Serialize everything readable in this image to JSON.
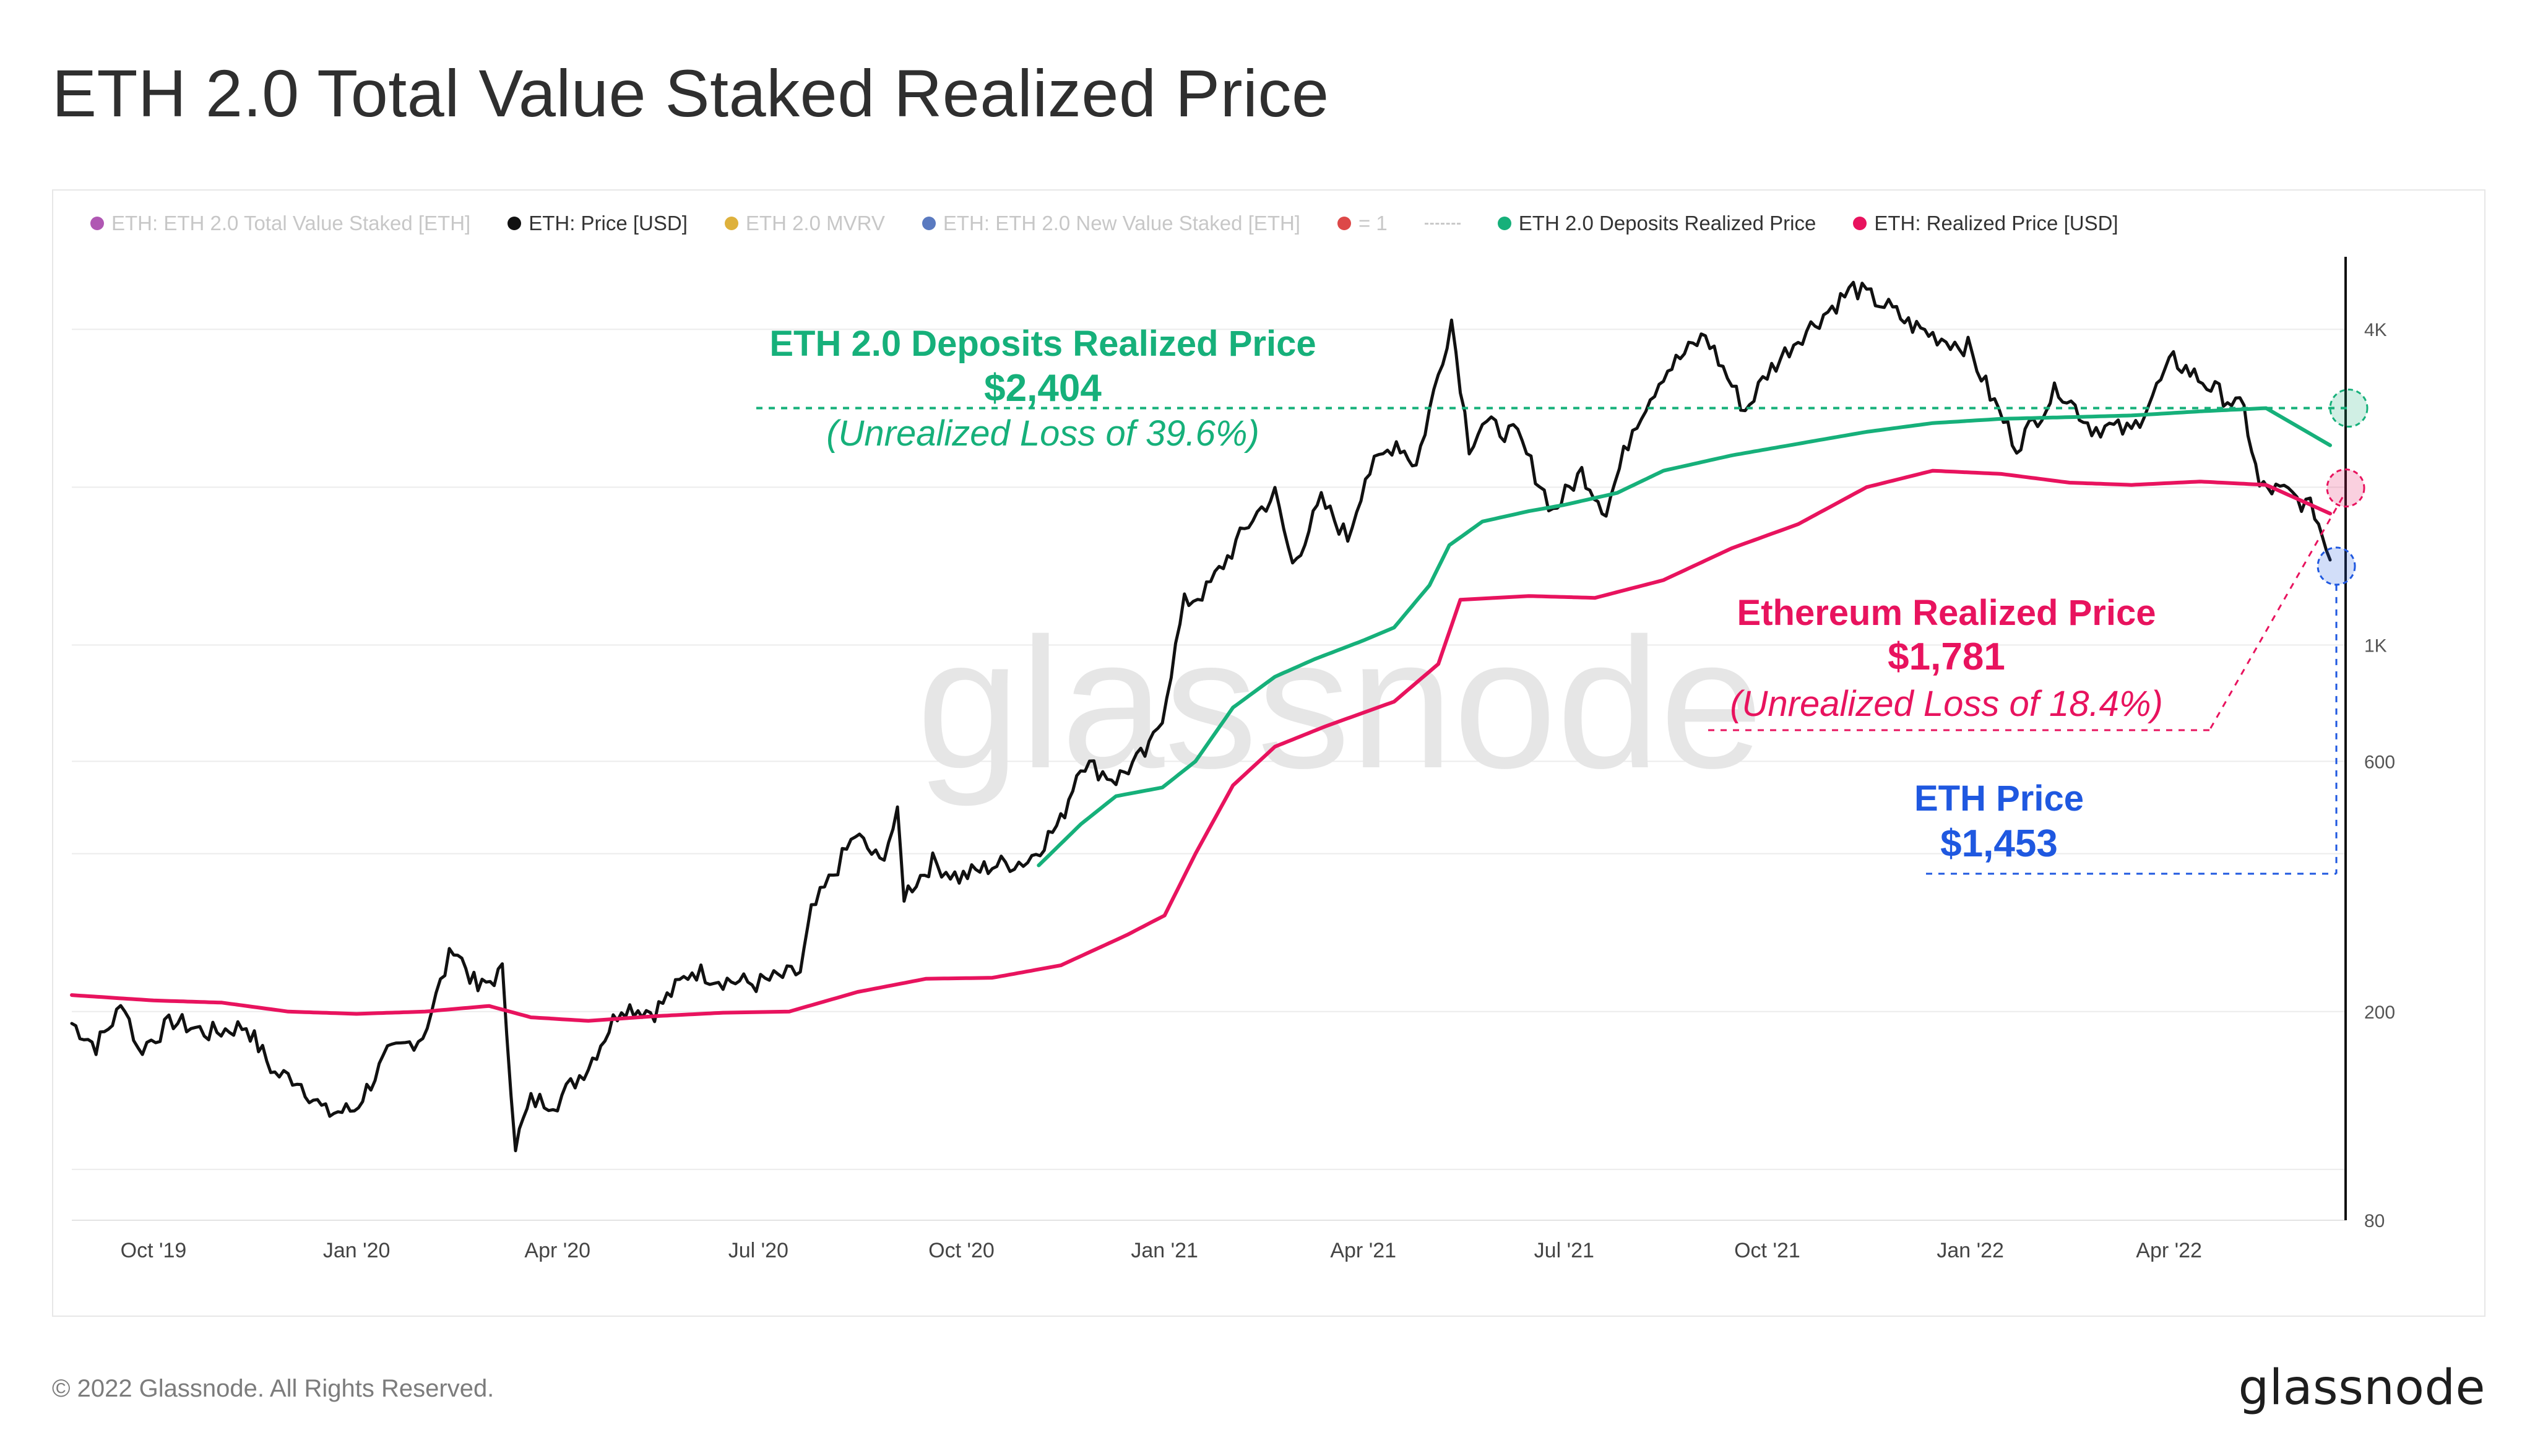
{
  "title": "ETH 2.0 Total Value Staked Realized Price",
  "legend": [
    {
      "label": "ETH: ETH 2.0 Total Value Staked [ETH]",
      "color": "#a23aa6",
      "faded": true
    },
    {
      "label": "ETH: Price [USD]",
      "color": "#111111",
      "faded": false
    },
    {
      "label": "ETH 2.0 MVRV",
      "color": "#d8a31a",
      "faded": true
    },
    {
      "label": "ETH: ETH 2.0 New Value Staked [ETH]",
      "color": "#3d63b5",
      "faded": true
    },
    {
      "label": "= 1",
      "color": "#d72828",
      "faded": true
    },
    {
      "label": "ETH 2.0 Deposits Realized Price",
      "color": "#16b07a",
      "faded": false
    },
    {
      "label": "ETH: Realized Price [USD]",
      "color": "#e8135e",
      "faded": false
    }
  ],
  "watermark": "glassnode",
  "footer": {
    "copyright": "© 2022 Glassnode. All Rights Reserved.",
    "brand": "glassnode"
  },
  "annotations": {
    "deposits": {
      "title": "ETH 2.0 Deposits Realized Price",
      "value": "$2,404",
      "note": "(Unrealized Loss of 39.6%)",
      "color": "#16b07a"
    },
    "realized": {
      "title": "Ethereum Realized Price",
      "value": "$1,781",
      "note": "(Unrealized Loss of 18.4%)",
      "color": "#e8135e"
    },
    "price": {
      "title": "ETH Price",
      "value": "$1,453",
      "color": "#1f58e0"
    }
  },
  "chart_data": {
    "type": "line",
    "title": "ETH 2.0 Total Value Staked Realized Price",
    "y_scale": "log",
    "ylim": [
      80,
      5500
    ],
    "y_ticks": [
      {
        "value": 80,
        "label": "80"
      },
      {
        "value": 200,
        "label": "200"
      },
      {
        "value": 600,
        "label": "600"
      },
      {
        "value": 1000,
        "label": "1K"
      },
      {
        "value": 4000,
        "label": "4K"
      }
    ],
    "x_domain": [
      "2019-08-25",
      "2022-06-20"
    ],
    "x_ticks": [
      {
        "date": "2019-10-01",
        "label": "Oct '19"
      },
      {
        "date": "2020-01-01",
        "label": "Jan '20"
      },
      {
        "date": "2020-04-01",
        "label": "Apr '20"
      },
      {
        "date": "2020-07-01",
        "label": "Jul '20"
      },
      {
        "date": "2020-10-01",
        "label": "Oct '20"
      },
      {
        "date": "2021-01-01",
        "label": "Jan '21"
      },
      {
        "date": "2021-04-01",
        "label": "Apr '21"
      },
      {
        "date": "2021-07-01",
        "label": "Jul '21"
      },
      {
        "date": "2021-10-01",
        "label": "Oct '21"
      },
      {
        "date": "2022-01-01",
        "label": "Jan '22"
      },
      {
        "date": "2022-04-01",
        "label": "Apr '22"
      }
    ],
    "series": [
      {
        "name": "ETH: Price [USD]",
        "color": "#111111",
        "points": [
          [
            "2019-08-25",
            190
          ],
          [
            "2019-09-05",
            172
          ],
          [
            "2019-09-18",
            208
          ],
          [
            "2019-09-24",
            168
          ],
          [
            "2019-10-10",
            192
          ],
          [
            "2019-10-26",
            182
          ],
          [
            "2019-11-12",
            188
          ],
          [
            "2019-11-25",
            152
          ],
          [
            "2019-12-05",
            149
          ],
          [
            "2019-12-18",
            128
          ],
          [
            "2019-12-31",
            130
          ],
          [
            "2020-01-15",
            165
          ],
          [
            "2020-01-31",
            180
          ],
          [
            "2020-02-14",
            268
          ],
          [
            "2020-02-25",
            220
          ],
          [
            "2020-03-07",
            238
          ],
          [
            "2020-03-13",
            112
          ],
          [
            "2020-03-20",
            135
          ],
          [
            "2020-04-01",
            135
          ],
          [
            "2020-04-15",
            158
          ],
          [
            "2020-04-30",
            205
          ],
          [
            "2020-05-15",
            200
          ],
          [
            "2020-06-01",
            240
          ],
          [
            "2020-06-15",
            230
          ],
          [
            "2020-06-30",
            226
          ],
          [
            "2020-07-20",
            238
          ],
          [
            "2020-07-25",
            308
          ],
          [
            "2020-08-14",
            435
          ],
          [
            "2020-08-25",
            385
          ],
          [
            "2020-09-02",
            470
          ],
          [
            "2020-09-05",
            335
          ],
          [
            "2020-09-18",
            385
          ],
          [
            "2020-09-30",
            360
          ],
          [
            "2020-10-15",
            380
          ],
          [
            "2020-10-31",
            388
          ],
          [
            "2020-11-15",
            460
          ],
          [
            "2020-11-24",
            600
          ],
          [
            "2020-12-10",
            555
          ],
          [
            "2020-12-25",
            630
          ],
          [
            "2020-12-31",
            737
          ],
          [
            "2021-01-10",
            1200
          ],
          [
            "2021-01-20",
            1270
          ],
          [
            "2021-02-10",
            1750
          ],
          [
            "2021-02-20",
            1940
          ],
          [
            "2021-02-28",
            1420
          ],
          [
            "2021-03-13",
            1880
          ],
          [
            "2021-03-25",
            1600
          ],
          [
            "2021-04-02",
            2100
          ],
          [
            "2021-04-16",
            2450
          ],
          [
            "2021-04-25",
            2200
          ],
          [
            "2021-05-11",
            4170
          ],
          [
            "2021-05-19",
            2400
          ],
          [
            "2021-05-25",
            2650
          ],
          [
            "2021-06-10",
            2500
          ],
          [
            "2021-06-26",
            1800
          ],
          [
            "2021-07-09",
            2140
          ],
          [
            "2021-07-20",
            1800
          ],
          [
            "2021-08-01",
            2600
          ],
          [
            "2021-08-15",
            3300
          ],
          [
            "2021-09-03",
            3900
          ],
          [
            "2021-09-21",
            2800
          ],
          [
            "2021-10-01",
            3300
          ],
          [
            "2021-10-15",
            3850
          ],
          [
            "2021-11-09",
            4800
          ],
          [
            "2021-11-25",
            4400
          ],
          [
            "2021-12-04",
            4100
          ],
          [
            "2021-12-15",
            3900
          ],
          [
            "2021-12-31",
            3700
          ],
          [
            "2022-01-10",
            3000
          ],
          [
            "2022-01-22",
            2400
          ],
          [
            "2022-02-10",
            3100
          ],
          [
            "2022-02-25",
            2600
          ],
          [
            "2022-03-05",
            2600
          ],
          [
            "2022-03-15",
            2550
          ],
          [
            "2022-04-03",
            3500
          ],
          [
            "2022-04-20",
            3100
          ],
          [
            "2022-05-05",
            2800
          ],
          [
            "2022-05-12",
            2000
          ],
          [
            "2022-05-25",
            1950
          ],
          [
            "2022-06-06",
            1800
          ],
          [
            "2022-06-13",
            1453
          ]
        ]
      },
      {
        "name": "ETH 2.0 Deposits Realized Price",
        "color": "#16b07a",
        "points": [
          [
            "2020-11-05",
            380
          ],
          [
            "2020-11-24",
            455
          ],
          [
            "2020-12-10",
            515
          ],
          [
            "2020-12-31",
            535
          ],
          [
            "2021-01-15",
            600
          ],
          [
            "2021-02-01",
            760
          ],
          [
            "2021-02-20",
            870
          ],
          [
            "2021-03-10",
            940
          ],
          [
            "2021-04-01",
            1020
          ],
          [
            "2021-04-15",
            1080
          ],
          [
            "2021-05-01",
            1300
          ],
          [
            "2021-05-10",
            1550
          ],
          [
            "2021-05-25",
            1720
          ],
          [
            "2021-06-15",
            1800
          ],
          [
            "2021-07-01",
            1850
          ],
          [
            "2021-07-25",
            1950
          ],
          [
            "2021-08-15",
            2150
          ],
          [
            "2021-09-15",
            2300
          ],
          [
            "2021-10-15",
            2420
          ],
          [
            "2021-11-15",
            2550
          ],
          [
            "2021-12-15",
            2650
          ],
          [
            "2022-01-15",
            2700
          ],
          [
            "2022-02-15",
            2720
          ],
          [
            "2022-03-15",
            2740
          ],
          [
            "2022-04-15",
            2790
          ],
          [
            "2022-05-15",
            2830
          ],
          [
            "2022-06-13",
            2404
          ]
        ]
      },
      {
        "name": "ETH: Realized Price [USD]",
        "color": "#e8135e",
        "points": [
          [
            "2019-08-25",
            215
          ],
          [
            "2019-10-01",
            210
          ],
          [
            "2019-11-01",
            208
          ],
          [
            "2019-12-01",
            200
          ],
          [
            "2020-01-01",
            198
          ],
          [
            "2020-02-01",
            200
          ],
          [
            "2020-03-01",
            205
          ],
          [
            "2020-03-20",
            195
          ],
          [
            "2020-04-15",
            192
          ],
          [
            "2020-05-15",
            196
          ],
          [
            "2020-06-15",
            199
          ],
          [
            "2020-07-15",
            200
          ],
          [
            "2020-08-15",
            218
          ],
          [
            "2020-09-15",
            231
          ],
          [
            "2020-10-15",
            232
          ],
          [
            "2020-11-15",
            245
          ],
          [
            "2020-12-15",
            280
          ],
          [
            "2021-01-01",
            305
          ],
          [
            "2021-01-15",
            400
          ],
          [
            "2021-02-01",
            540
          ],
          [
            "2021-02-20",
            640
          ],
          [
            "2021-03-15",
            700
          ],
          [
            "2021-04-15",
            780
          ],
          [
            "2021-05-05",
            920
          ],
          [
            "2021-05-15",
            1220
          ],
          [
            "2021-06-15",
            1240
          ],
          [
            "2021-07-15",
            1230
          ],
          [
            "2021-08-15",
            1330
          ],
          [
            "2021-09-15",
            1530
          ],
          [
            "2021-10-15",
            1700
          ],
          [
            "2021-11-15",
            2000
          ],
          [
            "2021-12-15",
            2150
          ],
          [
            "2022-01-15",
            2120
          ],
          [
            "2022-02-15",
            2040
          ],
          [
            "2022-03-15",
            2020
          ],
          [
            "2022-04-15",
            2050
          ],
          [
            "2022-05-15",
            2020
          ],
          [
            "2022-06-13",
            1781
          ]
        ]
      }
    ]
  }
}
